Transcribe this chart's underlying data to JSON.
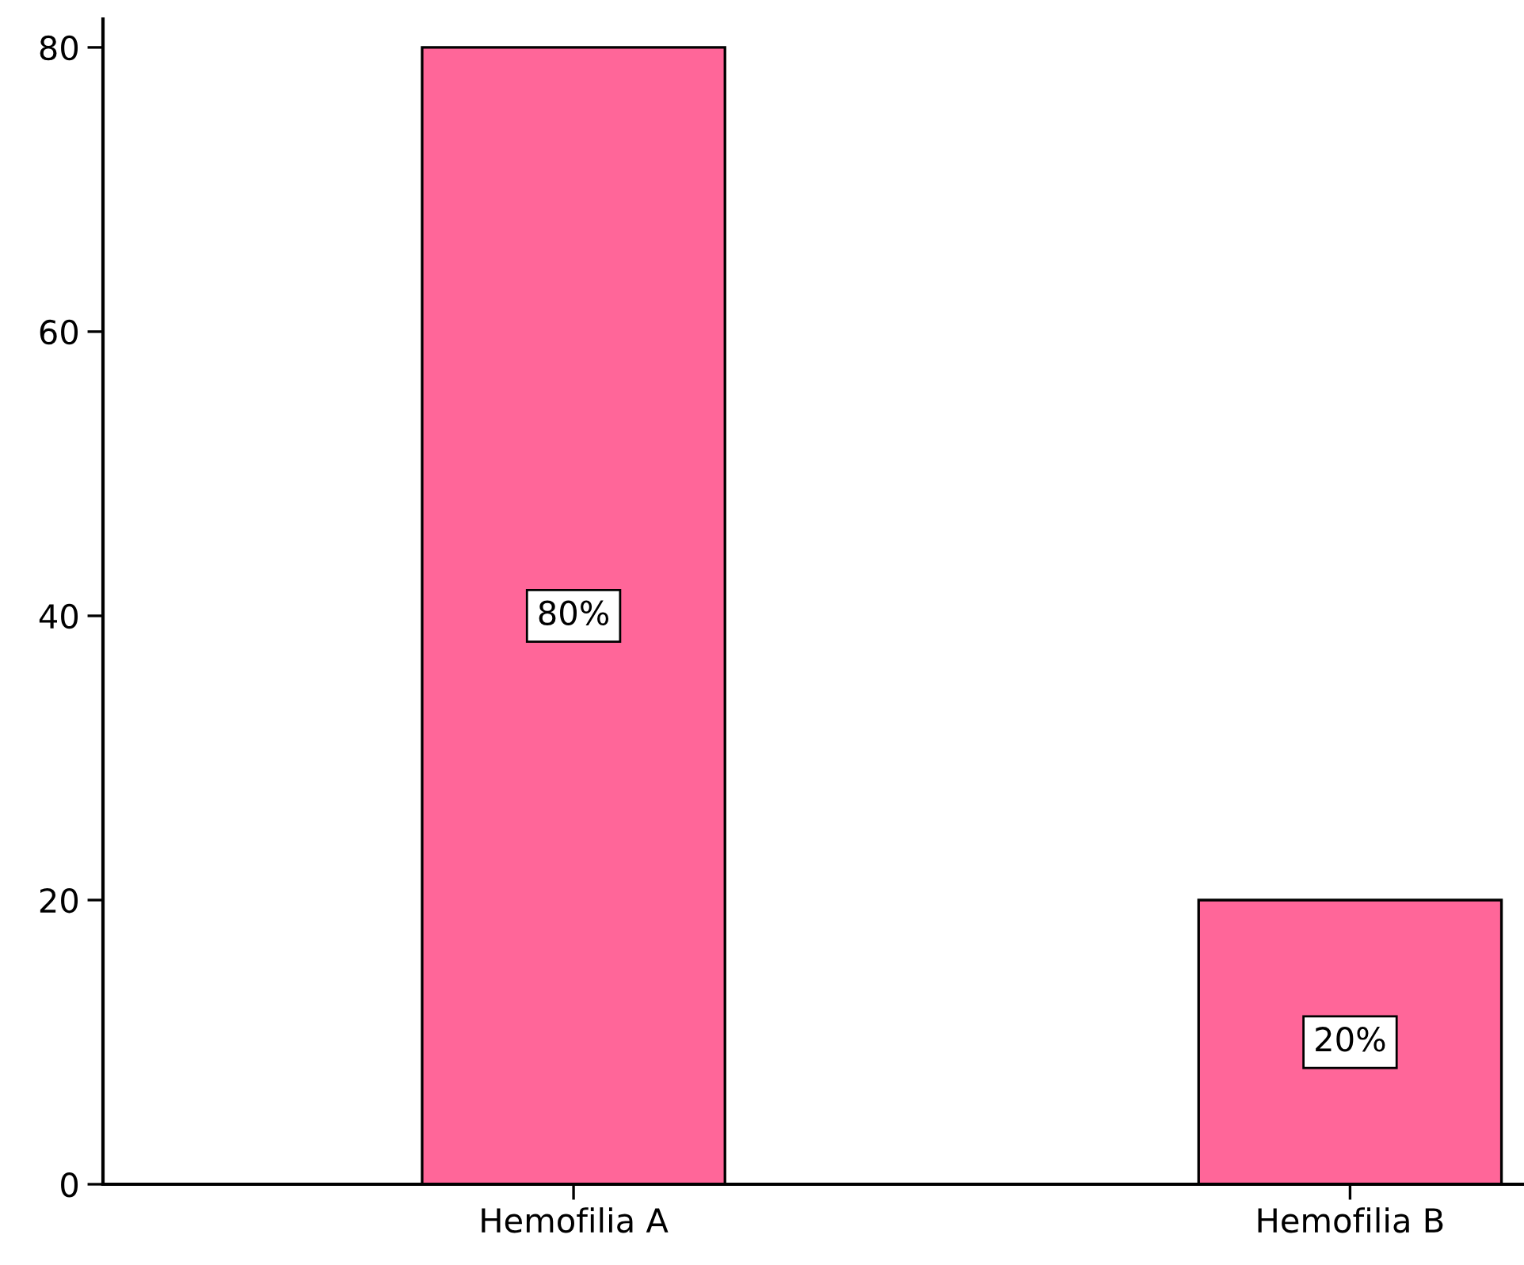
{
  "chart_data": {
    "type": "bar",
    "categories": [
      "Hemofilia A",
      "Hemofilia B"
    ],
    "values": [
      80,
      20
    ],
    "color": "#ff6699",
    "value_labels": [
      "80%",
      "20%"
    ],
    "ylim": [
      0,
      82
    ],
    "yticks": [
      0,
      20,
      40,
      60,
      80
    ],
    "grid": false,
    "legend": false
  }
}
